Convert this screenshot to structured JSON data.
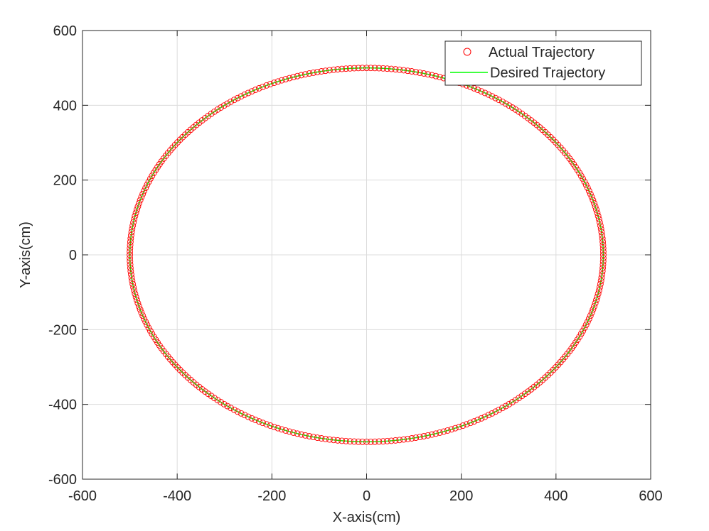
{
  "chart_data": {
    "type": "scatter",
    "title": "",
    "xlabel": "X-axis(cm)",
    "ylabel": "Y-axis(cm)",
    "xlim": [
      -600,
      600
    ],
    "ylim": [
      -600,
      600
    ],
    "xticks": [
      -600,
      -400,
      -200,
      0,
      200,
      400,
      600
    ],
    "yticks": [
      -600,
      -400,
      -200,
      0,
      200,
      400,
      600
    ],
    "xtick_labels": [
      "-600",
      "-400",
      "-200",
      "0",
      "200",
      "400",
      "600"
    ],
    "ytick_labels": [
      "-600",
      "-400",
      "-200",
      "0",
      "200",
      "400",
      "600"
    ],
    "grid": true,
    "legend_position": "top-right",
    "series": [
      {
        "name": "Actual Trajectory",
        "style": "markers",
        "marker": "circle",
        "color": "#ff0000",
        "shape": "circle",
        "center": [
          0,
          0
        ],
        "radius": 500,
        "point_count": 360
      },
      {
        "name": "Desired Trajectory",
        "style": "line",
        "color": "#00ff00",
        "shape": "circle",
        "center": [
          0,
          0
        ],
        "radius": 500
      }
    ]
  }
}
